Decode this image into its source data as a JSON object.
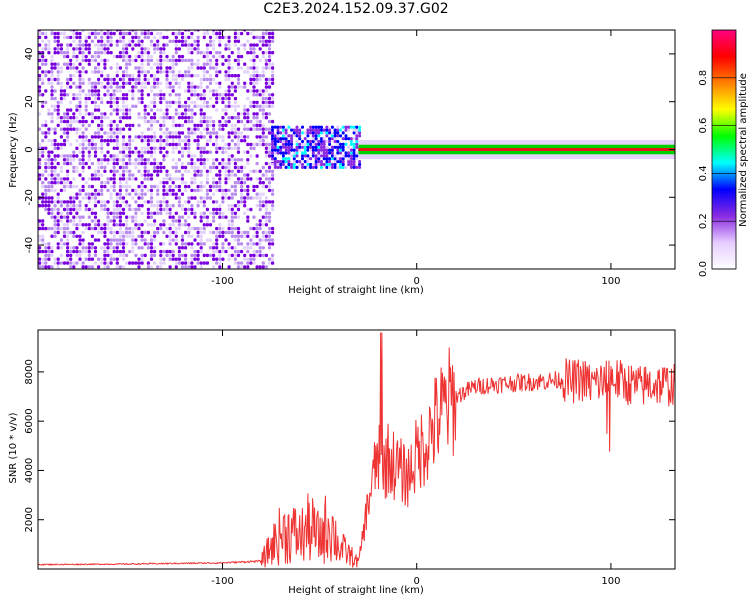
{
  "title": "C2E3.2024.152.09.37.G02",
  "chart_data": [
    {
      "type": "heatmap",
      "xlabel": "Height of straight line (km)",
      "ylabel": "Frequency (Hz)",
      "xlim": [
        -195,
        133
      ],
      "ylim": [
        -50,
        50
      ],
      "xticks": [
        -100,
        0,
        100
      ],
      "yticks": [
        -40,
        -20,
        0,
        20,
        40
      ],
      "colorbar": {
        "label": "Normalized spectral amplitude",
        "range": [
          0.0,
          1.0
        ],
        "ticks": [
          "0.0",
          "0.2",
          "0.4",
          "0.6",
          "0.8"
        ],
        "colormap": [
          "#ffffff",
          "#e6ccff",
          "#8a2be2",
          "#0000ff",
          "#00ffff",
          "#00ff00",
          "#ffff00",
          "#ff8000",
          "#ff0000",
          "#ff0080"
        ]
      },
      "regions": [
        {
          "x_range": [
            -195,
            -75
          ],
          "frequency_range": [
            -50,
            50
          ],
          "amplitude": 0.05
        },
        {
          "x_range": [
            -75,
            -30
          ],
          "frequency_range": [
            -8,
            10
          ],
          "amplitude": 0.3
        },
        {
          "x_range": [
            -30,
            133
          ],
          "frequency_range": [
            -2,
            2
          ],
          "amplitude": 0.9
        }
      ]
    },
    {
      "type": "line",
      "xlabel": "Height of straight line (km)",
      "ylabel": "SNR (10 * v/v)",
      "xlim": [
        -195,
        133
      ],
      "ylim": [
        0,
        9700
      ],
      "xticks": [
        -100,
        0,
        100
      ],
      "yticks": [
        2000,
        4000,
        6000,
        8000
      ],
      "series": [
        {
          "color": "#ee3333",
          "x": [
            -195,
            -150,
            -100,
            -80,
            -75,
            -70,
            -65,
            -60,
            -55,
            -50,
            -45,
            -40,
            -35,
            -30,
            -25,
            -20,
            -18,
            -15,
            -10,
            -5,
            0,
            5,
            10,
            15,
            20,
            30,
            40,
            50,
            60,
            70,
            75,
            80,
            85,
            90,
            95,
            100,
            105,
            110,
            115,
            120,
            125,
            133
          ],
          "y": [
            180,
            200,
            250,
            320,
            900,
            1400,
            1500,
            1300,
            1700,
            1200,
            1900,
            900,
            600,
            250,
            2700,
            4600,
            3900,
            4500,
            4100,
            3700,
            4600,
            5200,
            6000,
            6600,
            7000,
            7400,
            7500,
            7550,
            7600,
            7650,
            7700,
            7600,
            7700,
            7500,
            7600,
            7800,
            7600,
            7500,
            7400,
            7500,
            7500,
            7450
          ]
        }
      ]
    }
  ]
}
